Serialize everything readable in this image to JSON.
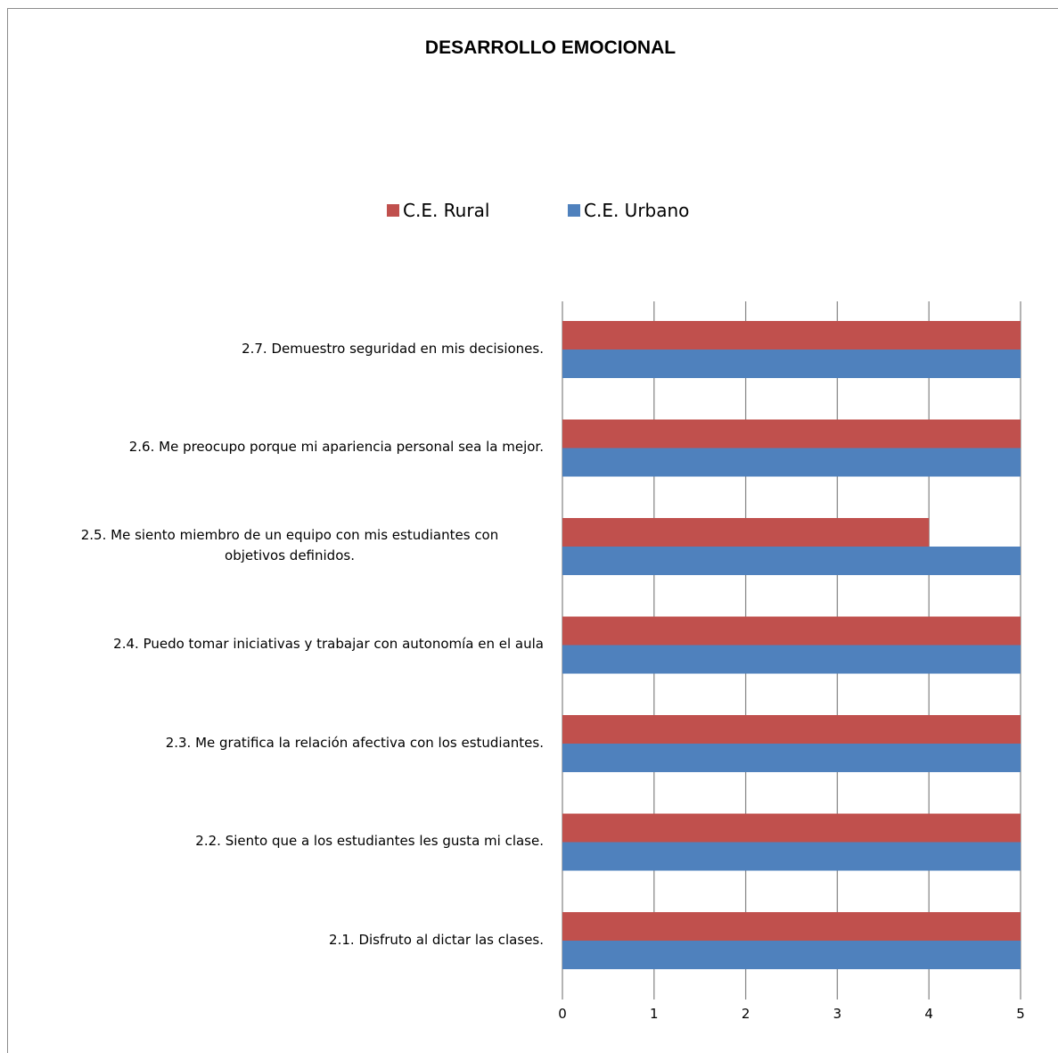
{
  "chart_data": {
    "type": "bar",
    "orientation": "horizontal",
    "title": "DESARROLLO EMOCIONAL",
    "categories": [
      "2.1.  Disfruto al dictar las clases.",
      "2.2.  Siento que a los estudiantes les gusta mi clase.",
      "2.3.  Me gratifica la relación afectiva con los estudiantes.",
      "2.4.  Puedo tomar iniciativas y trabajar con autonomía en el aula",
      "2.5.  Me siento miembro de un equipo  con mis estudiantes con objetivos definidos.",
      "2.6.  Me preocupo porque mi apariencia personal sea la mejor.",
      "2.7.  Demuestro seguridad en mis decisiones."
    ],
    "category_lines": [
      [
        "2.1.  Disfruto al dictar las clases."
      ],
      [
        "2.2.  Siento que a los estudiantes les gusta mi clase."
      ],
      [
        "2.3.  Me gratifica la relación afectiva con los estudiantes."
      ],
      [
        "2.4.  Puedo tomar iniciativas y trabajar con autonomía en el aula"
      ],
      [
        "2.5.  Me siento miembro de un equipo  con mis estudiantes con",
        "objetivos definidos."
      ],
      [
        "2.6.  Me preocupo porque mi apariencia personal sea la mejor."
      ],
      [
        "2.7.  Demuestro seguridad en mis decisiones."
      ]
    ],
    "series": [
      {
        "name": "C.E. Rural",
        "color": "#c0504d",
        "values": [
          5,
          5,
          5,
          5,
          4,
          5,
          5
        ]
      },
      {
        "name": "C.E. Urbano",
        "color": "#4f81bd",
        "values": [
          5,
          5,
          5,
          5,
          5,
          5,
          5
        ]
      }
    ],
    "xlim": [
      0,
      5
    ],
    "xticks": [
      "0",
      "1",
      "2",
      "3",
      "4",
      "5"
    ],
    "grid": "vertical",
    "legend_position": "top"
  }
}
